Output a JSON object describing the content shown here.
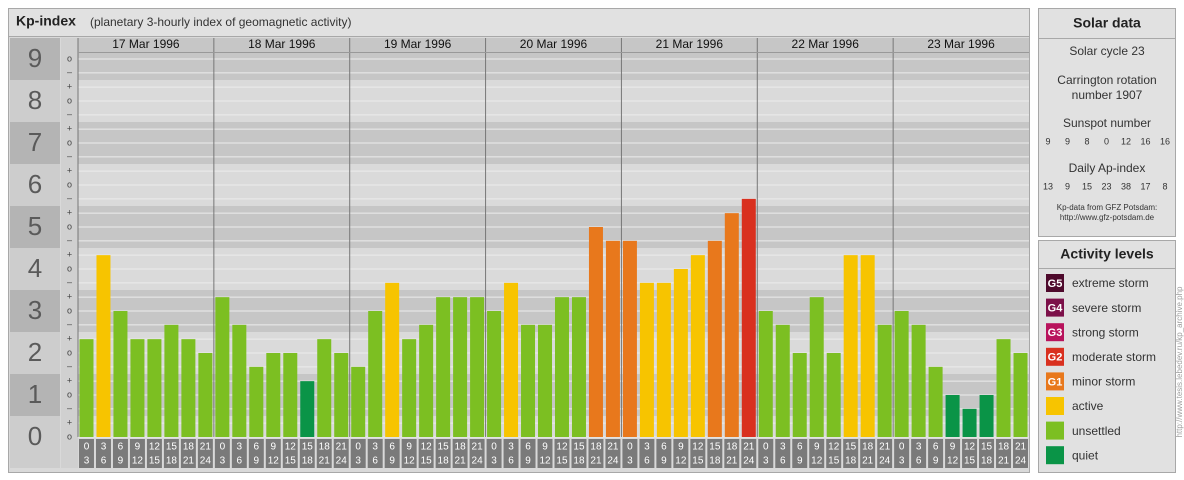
{
  "chart_data": {
    "type": "bar",
    "title": "Kp-index",
    "subtitle": "(planetary 3-hourly index of geomagnetic activity)",
    "days": [
      "17 Mar 1996",
      "18 Mar 1996",
      "19 Mar 1996",
      "20 Mar 1996",
      "21 Mar 1996",
      "22 Mar 1996",
      "23 Mar 1996"
    ],
    "categories": [
      [
        "0",
        "3"
      ],
      [
        "3",
        "6"
      ],
      [
        "6",
        "9"
      ],
      [
        "9",
        "12"
      ],
      [
        "12",
        "15"
      ],
      [
        "15",
        "18"
      ],
      [
        "18",
        "21"
      ],
      [
        "21",
        "24"
      ],
      [
        "0",
        "3"
      ],
      [
        "3",
        "6"
      ],
      [
        "6",
        "9"
      ],
      [
        "9",
        "12"
      ],
      [
        "12",
        "15"
      ],
      [
        "15",
        "18"
      ],
      [
        "18",
        "21"
      ],
      [
        "21",
        "24"
      ],
      [
        "0",
        "3"
      ],
      [
        "3",
        "6"
      ],
      [
        "6",
        "9"
      ],
      [
        "9",
        "12"
      ],
      [
        "12",
        "15"
      ],
      [
        "15",
        "18"
      ],
      [
        "18",
        "21"
      ],
      [
        "21",
        "24"
      ],
      [
        "0",
        "3"
      ],
      [
        "3",
        "6"
      ],
      [
        "6",
        "9"
      ],
      [
        "9",
        "12"
      ],
      [
        "12",
        "15"
      ],
      [
        "15",
        "18"
      ],
      [
        "18",
        "21"
      ],
      [
        "21",
        "24"
      ],
      [
        "0",
        "3"
      ],
      [
        "3",
        "6"
      ],
      [
        "6",
        "9"
      ],
      [
        "9",
        "12"
      ],
      [
        "12",
        "15"
      ],
      [
        "15",
        "18"
      ],
      [
        "18",
        "21"
      ],
      [
        "21",
        "24"
      ],
      [
        "0",
        "3"
      ],
      [
        "3",
        "6"
      ],
      [
        "6",
        "9"
      ],
      [
        "9",
        "12"
      ],
      [
        "12",
        "15"
      ],
      [
        "15",
        "18"
      ],
      [
        "18",
        "21"
      ],
      [
        "21",
        "24"
      ],
      [
        "0",
        "3"
      ],
      [
        "3",
        "6"
      ],
      [
        "6",
        "9"
      ],
      [
        "9",
        "12"
      ],
      [
        "12",
        "15"
      ],
      [
        "15",
        "18"
      ],
      [
        "18",
        "21"
      ],
      [
        "21",
        "24"
      ]
    ],
    "values": [
      2.33,
      4.33,
      3,
      2.33,
      2.33,
      2.67,
      2.33,
      2,
      3.33,
      2.67,
      1.67,
      2,
      2,
      1.33,
      2.33,
      2,
      1.67,
      3,
      3.67,
      2.33,
      2.67,
      3.33,
      3.33,
      3.33,
      3,
      3.67,
      2.67,
      2.67,
      3.33,
      3.33,
      5,
      4.67,
      4.67,
      3.67,
      3.67,
      4,
      4.33,
      4.67,
      5.33,
      5.67,
      3,
      2.67,
      2,
      3.33,
      2,
      4.33,
      4.33,
      2.67,
      3,
      2.67,
      1.67,
      1,
      0.67,
      1,
      2.33,
      2
    ],
    "colors": [
      "#7cbf22",
      "#f7c400",
      "#7cbf22",
      "#7cbf22",
      "#7cbf22",
      "#7cbf22",
      "#7cbf22",
      "#7cbf22",
      "#7cbf22",
      "#7cbf22",
      "#7cbf22",
      "#7cbf22",
      "#7cbf22",
      "#0a9447",
      "#7cbf22",
      "#7cbf22",
      "#7cbf22",
      "#7cbf22",
      "#f7c400",
      "#7cbf22",
      "#7cbf22",
      "#7cbf22",
      "#7cbf22",
      "#7cbf22",
      "#7cbf22",
      "#f7c400",
      "#7cbf22",
      "#7cbf22",
      "#7cbf22",
      "#7cbf22",
      "#e8781c",
      "#e8781c",
      "#e8781c",
      "#f7c400",
      "#f7c400",
      "#f7c400",
      "#f7c400",
      "#e8781c",
      "#e8781c",
      "#d9301f",
      "#7cbf22",
      "#7cbf22",
      "#7cbf22",
      "#7cbf22",
      "#7cbf22",
      "#f7c400",
      "#f7c400",
      "#7cbf22",
      "#7cbf22",
      "#7cbf22",
      "#7cbf22",
      "#0a9447",
      "#0a9447",
      "#0a9447",
      "#7cbf22",
      "#7cbf22"
    ],
    "ylim": [
      0,
      9.5
    ],
    "yticks": [
      0,
      1,
      2,
      3,
      4,
      5,
      6,
      7,
      8,
      9
    ],
    "minor_yticks": [
      {
        "value": 0,
        "label": "o"
      },
      {
        "value": 0.33,
        "label": "+"
      },
      {
        "value": 0.67,
        "label": "–"
      },
      {
        "value": 1,
        "label": "o"
      },
      {
        "value": 1.33,
        "label": "+"
      },
      {
        "value": 1.67,
        "label": "–"
      },
      {
        "value": 2,
        "label": "o"
      },
      {
        "value": 2.33,
        "label": "+"
      },
      {
        "value": 2.67,
        "label": "–"
      },
      {
        "value": 3,
        "label": "o"
      },
      {
        "value": 3.33,
        "label": "+"
      },
      {
        "value": 3.67,
        "label": "–"
      },
      {
        "value": 4,
        "label": "o"
      },
      {
        "value": 4.33,
        "label": "+"
      },
      {
        "value": 4.67,
        "label": "–"
      },
      {
        "value": 5,
        "label": "o"
      },
      {
        "value": 5.33,
        "label": "+"
      },
      {
        "value": 5.67,
        "label": "–"
      },
      {
        "value": 6,
        "label": "o"
      },
      {
        "value": 6.33,
        "label": "+"
      },
      {
        "value": 6.67,
        "label": "–"
      },
      {
        "value": 7,
        "label": "o"
      },
      {
        "value": 7.33,
        "label": "+"
      },
      {
        "value": 7.67,
        "label": "–"
      },
      {
        "value": 8,
        "label": "o"
      },
      {
        "value": 8.33,
        "label": "+"
      },
      {
        "value": 8.67,
        "label": "–"
      },
      {
        "value": 9,
        "label": "o"
      }
    ],
    "grid": true,
    "levels": [
      {
        "code": "G5",
        "name": "extreme storm",
        "color": "#4e0a2c"
      },
      {
        "code": "G4",
        "name": "severe storm",
        "color": "#7c1049"
      },
      {
        "code": "G3",
        "name": "strong storm",
        "color": "#b8135c"
      },
      {
        "code": "G2",
        "name": "moderate storm",
        "color": "#d9301f"
      },
      {
        "code": "G1",
        "name": "minor storm",
        "color": "#e8781c"
      },
      {
        "name": "active",
        "color": "#f7c400"
      },
      {
        "name": "unsettled",
        "color": "#7cbf22"
      },
      {
        "name": "quiet",
        "color": "#0a9447"
      }
    ],
    "levels_title": "Activity levels"
  },
  "solar_data": {
    "title": "Solar data",
    "cycle": "Solar cycle 23",
    "carrington": [
      "Carrington rotation",
      "number 1907"
    ],
    "sunspot_title": "Sunspot number",
    "sunspot": [
      9,
      9,
      8,
      0,
      12,
      16,
      16
    ],
    "ap_title": "Daily Ap-index",
    "ap": [
      13,
      9,
      15,
      23,
      38,
      17,
      8
    ],
    "source": "Kp-data from GFZ Potsdam:",
    "source_url": "http://www.gfz-potsdam.de"
  },
  "side_url": "http://www.tesis.lebedev.ru/kp_archive.php"
}
